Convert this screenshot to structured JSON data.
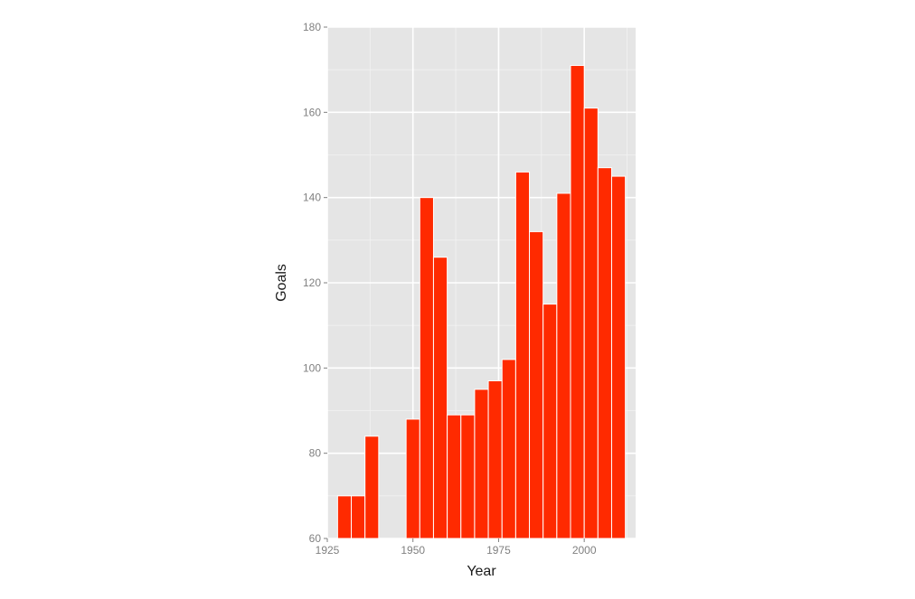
{
  "chart_data": {
    "type": "bar",
    "title": "",
    "xlabel": "Year",
    "ylabel": "Goals",
    "x": [
      1930,
      1934,
      1938,
      1950,
      1954,
      1958,
      1962,
      1966,
      1970,
      1974,
      1978,
      1982,
      1986,
      1990,
      1994,
      1998,
      2002,
      2006,
      2010
    ],
    "values": [
      70,
      70,
      84,
      88,
      140,
      126,
      89,
      89,
      95,
      97,
      102,
      146,
      132,
      115,
      141,
      171,
      161,
      147,
      145
    ],
    "xlim": [
      1925,
      2015
    ],
    "ylim": [
      60,
      180
    ],
    "x_ticks": [
      1925,
      1950,
      1975,
      2000
    ],
    "y_ticks": [
      60,
      80,
      100,
      120,
      140,
      160,
      180
    ],
    "grid": true,
    "colors": {
      "bar": "#ff2a00",
      "panel_background": "#e5e5e5",
      "grid_major": "#ffffff",
      "grid_minor": "#f2f2f2",
      "tick_label": "#808080",
      "axis_title": "#1a1a1a"
    }
  }
}
